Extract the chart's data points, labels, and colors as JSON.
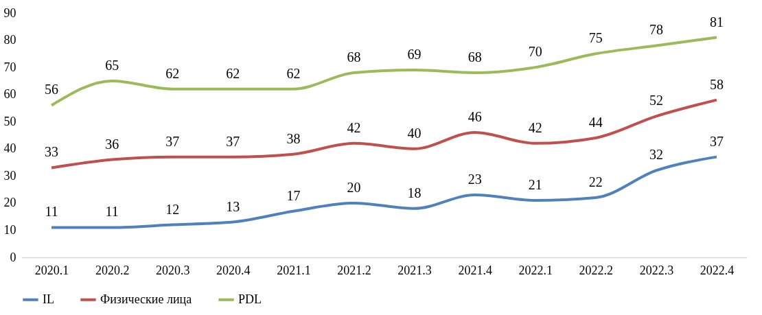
{
  "chart_data": {
    "type": "line",
    "categories": [
      "2020.1",
      "2020.2",
      "2020.3",
      "2020.4",
      "2021.1",
      "2021.2",
      "2021.3",
      "2021.4",
      "2022.1",
      "2022.2",
      "2022.3",
      "2022.4"
    ],
    "series": [
      {
        "name": "IL",
        "color": "#4f81bd",
        "values": [
          11,
          11,
          12,
          13,
          17,
          20,
          18,
          23,
          21,
          22,
          32,
          37
        ]
      },
      {
        "name": "Физические лица",
        "color": "#c0504d",
        "values": [
          33,
          36,
          37,
          37,
          38,
          42,
          40,
          46,
          42,
          44,
          52,
          58
        ]
      },
      {
        "name": "PDL",
        "color": "#9bbb59",
        "values": [
          56,
          65,
          62,
          62,
          62,
          68,
          69,
          68,
          70,
          75,
          78,
          81
        ]
      }
    ],
    "ylim": [
      0,
      90
    ],
    "yticks": [
      0,
      10,
      20,
      30,
      40,
      50,
      60,
      70,
      80,
      90
    ],
    "grid": false,
    "legend": "bottom",
    "data_labels": true,
    "marker": "none",
    "line_style": "solid"
  }
}
